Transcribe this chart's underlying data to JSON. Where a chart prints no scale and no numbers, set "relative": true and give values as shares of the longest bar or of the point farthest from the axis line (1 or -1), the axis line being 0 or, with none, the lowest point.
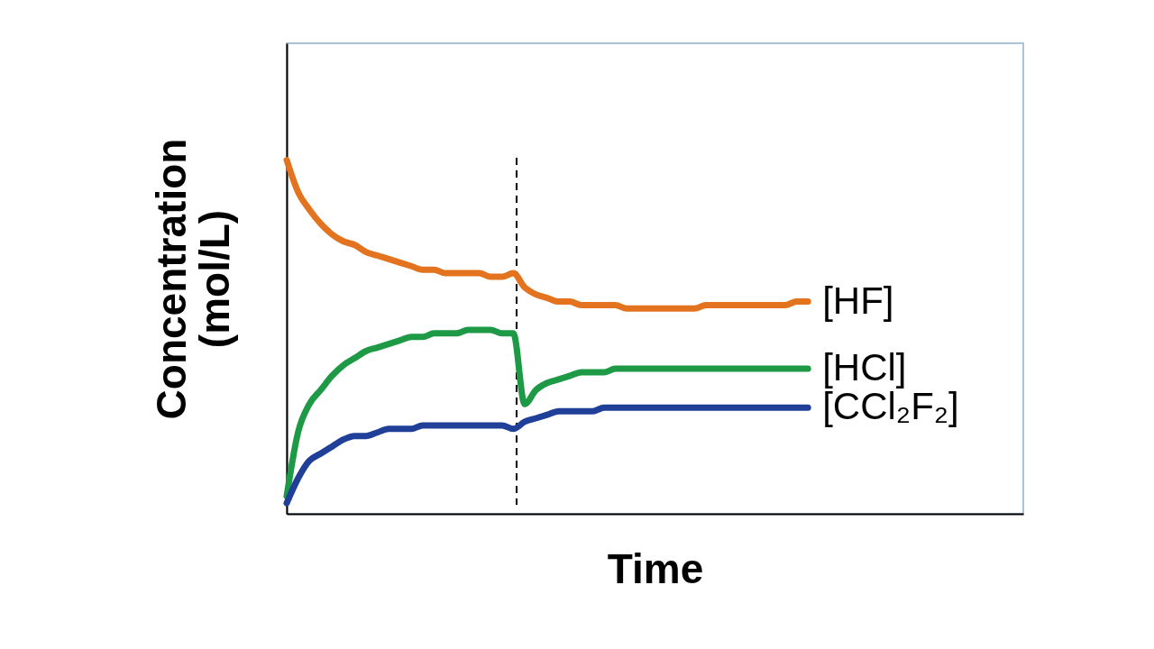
{
  "chart_data": {
    "type": "line",
    "relative": true,
    "xlabel": "Time",
    "ylabel": "Concentration (mol/L)",
    "legend": false,
    "grid": false,
    "categories": [
      null,
      null,
      null,
      null,
      null,
      null,
      null,
      null,
      null,
      null,
      null,
      null,
      null,
      null,
      null,
      null,
      null,
      null,
      null,
      null,
      null,
      null,
      null,
      null,
      null,
      null,
      null,
      null,
      null,
      null,
      null,
      null,
      null,
      null,
      null,
      null,
      null,
      null,
      null,
      null,
      null,
      null,
      null,
      null,
      null,
      null,
      null,
      null,
      null,
      null,
      null,
      null,
      null,
      null,
      null,
      null,
      null,
      null,
      null,
      null,
      null,
      null,
      null,
      null,
      null,
      null
    ],
    "series": [
      {
        "name": "[HF]",
        "color": "#e3731f",
        "values": [
          1.0,
          0.91,
          0.86,
          0.82,
          0.79,
          0.77,
          0.76,
          0.74,
          0.73,
          0.72,
          0.71,
          0.7,
          0.69,
          0.69,
          0.68,
          0.68,
          0.68,
          0.68,
          0.67,
          0.67,
          0.68,
          0.64,
          0.62,
          0.61,
          0.6,
          0.6,
          0.59,
          0.59,
          0.59,
          0.59,
          0.58,
          0.58,
          0.58,
          0.58,
          0.58,
          0.58,
          0.58,
          0.59,
          0.59,
          0.59,
          0.59,
          0.59,
          0.59,
          0.59,
          0.59,
          0.6,
          0.6,
          null,
          null,
          null,
          null,
          null,
          null,
          null,
          null,
          null,
          null,
          null,
          null,
          null,
          null,
          null,
          null,
          null,
          null,
          null
        ]
      },
      {
        "name": "[HCl]",
        "color": "#1e9a47",
        "values": [
          0.05,
          0.23,
          0.31,
          0.35,
          0.39,
          0.42,
          0.44,
          0.46,
          0.47,
          0.48,
          0.49,
          0.5,
          0.5,
          0.51,
          0.51,
          0.51,
          0.52,
          0.52,
          0.52,
          0.51,
          0.51,
          0.31,
          0.35,
          0.37,
          0.38,
          0.39,
          0.4,
          0.4,
          0.4,
          0.41,
          0.41,
          0.41,
          0.41,
          0.41,
          0.41,
          0.41,
          0.41,
          0.41,
          0.41,
          0.41,
          0.41,
          0.41,
          0.41,
          0.41,
          0.41,
          0.41,
          0.41,
          null,
          null,
          null,
          null,
          null,
          null,
          null,
          null,
          null,
          null,
          null,
          null,
          null,
          null,
          null,
          null,
          null,
          null,
          null
        ]
      },
      {
        "name": "[CCl₂F₂]",
        "color": "#1f3f99",
        "values": [
          0.03,
          0.1,
          0.15,
          0.17,
          0.19,
          0.21,
          0.22,
          0.22,
          0.23,
          0.24,
          0.24,
          0.24,
          0.25,
          0.25,
          0.25,
          0.25,
          0.25,
          0.25,
          0.25,
          0.25,
          0.24,
          0.26,
          0.27,
          0.28,
          0.29,
          0.29,
          0.29,
          0.29,
          0.3,
          0.3,
          0.3,
          0.3,
          0.3,
          0.3,
          0.3,
          0.3,
          0.3,
          0.3,
          0.3,
          0.3,
          0.3,
          0.3,
          0.3,
          0.3,
          0.3,
          0.3,
          0.3,
          null,
          null,
          null,
          null,
          null,
          null,
          null,
          null,
          null,
          null,
          null,
          null,
          null,
          null,
          null,
          null,
          null,
          null,
          null
        ]
      }
    ]
  }
}
